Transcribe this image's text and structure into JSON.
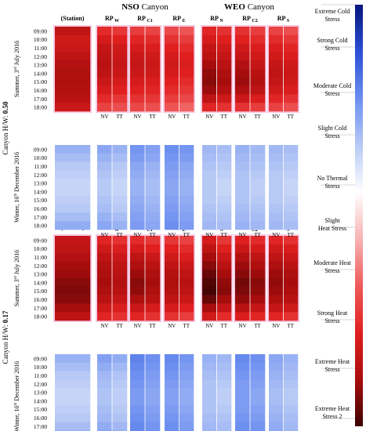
{
  "chart_data": {
    "type": "heatmap",
    "group_headers": {
      "nso": {
        "bold": "NSO",
        "rest": " Canyon"
      },
      "weo": {
        "bold": "WEO",
        "rest": " Canyon"
      }
    },
    "column_headers": [
      {
        "base": "(Station)",
        "sub": ""
      },
      {
        "base": "RP",
        "sub": "W"
      },
      {
        "base": "RP",
        "sub": "C1"
      },
      {
        "base": "RP",
        "sub": "E"
      },
      {
        "base": "RP",
        "sub": "N"
      },
      {
        "base": "RP",
        "sub": "C2"
      },
      {
        "base": "RP",
        "sub": "S"
      }
    ],
    "subcolumn_labels": [
      "NV",
      "TT"
    ],
    "times": [
      "09:00",
      "10:00",
      "11:00",
      "12:00",
      "13:00",
      "14:00",
      "15:00",
      "16:00",
      "17:00",
      "18:00"
    ],
    "canyons": [
      {
        "label_prefix": "Canyon H/W: ",
        "label_value": "0.50",
        "summer_label": {
          "pre": "Summer, 3",
          "sup": "rd",
          "post": " July 2016"
        },
        "winter_label": {
          "pre": "Winter, 16",
          "sup": "th",
          "post": " December 2016"
        }
      },
      {
        "label_prefix": "Canyon H/W: ",
        "label_value": "0.17",
        "summer_label": {
          "pre": "Summer, 3",
          "sup": "rd",
          "post": " July 2016"
        },
        "winter_label": {
          "pre": "Winter, 16",
          "sup": "th",
          "post": " December 2016"
        }
      }
    ],
    "colorbar_labels": [
      {
        "lines": [
          "Extreme Cold",
          "Stress"
        ],
        "v": 0
      },
      {
        "lines": [
          "Strong Cold",
          "Stress"
        ],
        "v": 1
      },
      {
        "lines": [
          "Moderate Cold",
          "Stress"
        ],
        "v": 2
      },
      {
        "lines": [
          "Slight Cold",
          "Stress"
        ],
        "v": 3
      },
      {
        "lines": [
          "No Thermal",
          "Stress"
        ],
        "v": 4
      },
      {
        "lines": [
          "Slight",
          "Heat Stress"
        ],
        "v": 5
      },
      {
        "lines": [
          "Moderate Heat",
          "Stress"
        ],
        "v": 6
      },
      {
        "lines": [
          "Strong Heat",
          "Stress"
        ],
        "v": 7
      },
      {
        "lines": [
          "Extreme Heat",
          "Stress"
        ],
        "v": 8
      },
      {
        "lines": [
          "Extreme Heat",
          "Stress 2"
        ],
        "v": 9
      }
    ],
    "colorbar_stops": [
      "#06157a",
      "#2b4fd6",
      "#6d8ff0",
      "#b7c9f5",
      "#ffffff",
      "#f7b3b3",
      "#ee5a5a",
      "#e01f1f",
      "#a80d0d",
      "#3c0303"
    ],
    "scale_min": 0,
    "scale_max": 9,
    "heat_values": {
      "p1_summer": [
        [
          [
            7.6
          ],
          [
            7.3
          ],
          [
            7.4
          ],
          [
            7.6
          ],
          [
            7.8
          ],
          [
            7.9
          ],
          [
            7.9
          ],
          [
            7.8
          ],
          [
            7.7
          ],
          [
            7.4
          ]
        ],
        [
          [
            6.8,
            6.6
          ],
          [
            7.2,
            7.0
          ],
          [
            7.5,
            7.3
          ],
          [
            7.6,
            7.4
          ],
          [
            7.7,
            7.5
          ],
          [
            7.6,
            7.4
          ],
          [
            7.4,
            7.2
          ],
          [
            7.2,
            7.0
          ],
          [
            6.8,
            6.6
          ],
          [
            6.4,
            6.2
          ]
        ],
        [
          [
            6.5,
            6.4
          ],
          [
            6.9,
            6.8
          ],
          [
            7.2,
            7.1
          ],
          [
            7.4,
            7.3
          ],
          [
            7.5,
            7.4
          ],
          [
            7.4,
            7.3
          ],
          [
            7.2,
            7.1
          ],
          [
            7.0,
            6.9
          ],
          [
            6.7,
            6.6
          ],
          [
            6.3,
            6.2
          ]
        ],
        [
          [
            6.3,
            6.1
          ],
          [
            6.7,
            6.5
          ],
          [
            7.0,
            6.8
          ],
          [
            7.2,
            7.0
          ],
          [
            7.3,
            7.1
          ],
          [
            7.2,
            7.0
          ],
          [
            7.0,
            6.8
          ],
          [
            6.8,
            6.6
          ],
          [
            6.5,
            6.3
          ],
          [
            6.1,
            5.9
          ]
        ],
        [
          [
            6.9,
            6.7
          ],
          [
            7.2,
            7.0
          ],
          [
            7.5,
            7.3
          ],
          [
            7.7,
            7.5
          ],
          [
            8.0,
            7.7
          ],
          [
            8.2,
            7.9
          ],
          [
            8.3,
            8.0
          ],
          [
            8.1,
            7.8
          ],
          [
            7.6,
            7.3
          ],
          [
            6.9,
            6.7
          ]
        ],
        [
          [
            6.7,
            6.5
          ],
          [
            7.0,
            6.8
          ],
          [
            7.3,
            7.1
          ],
          [
            7.5,
            7.3
          ],
          [
            7.8,
            7.5
          ],
          [
            8.0,
            7.7
          ],
          [
            8.1,
            7.8
          ],
          [
            7.9,
            7.6
          ],
          [
            7.4,
            7.1
          ],
          [
            6.7,
            6.5
          ]
        ],
        [
          [
            6.4,
            6.2
          ],
          [
            6.8,
            6.6
          ],
          [
            7.1,
            6.9
          ],
          [
            7.3,
            7.1
          ],
          [
            7.5,
            7.3
          ],
          [
            7.6,
            7.4
          ],
          [
            7.5,
            7.3
          ],
          [
            7.3,
            7.1
          ],
          [
            6.9,
            6.7
          ],
          [
            6.4,
            6.2
          ]
        ]
      ],
      "p1_winter": [
        [
          [
            2.6
          ],
          [
            2.8
          ],
          [
            3.0
          ],
          [
            3.1
          ],
          [
            3.2
          ],
          [
            3.2
          ],
          [
            3.1
          ],
          [
            3.0
          ],
          [
            2.8
          ],
          [
            2.5
          ]
        ],
        [
          [
            2.4,
            2.6
          ],
          [
            2.6,
            2.8
          ],
          [
            2.8,
            3.0
          ],
          [
            2.9,
            3.1
          ],
          [
            3.0,
            3.2
          ],
          [
            3.0,
            3.2
          ],
          [
            2.9,
            3.1
          ],
          [
            2.8,
            3.0
          ],
          [
            2.6,
            2.8
          ],
          [
            2.4,
            2.6
          ]
        ],
        [
          [
            2.1,
            2.3
          ],
          [
            2.2,
            2.4
          ],
          [
            2.4,
            2.6
          ],
          [
            2.5,
            2.7
          ],
          [
            2.6,
            2.8
          ],
          [
            2.6,
            2.8
          ],
          [
            2.5,
            2.7
          ],
          [
            2.4,
            2.6
          ],
          [
            2.3,
            2.5
          ],
          [
            2.2,
            2.4
          ]
        ],
        [
          [
            2.0,
            2.1
          ],
          [
            2.1,
            2.2
          ],
          [
            2.2,
            2.4
          ],
          [
            2.3,
            2.5
          ],
          [
            2.4,
            2.6
          ],
          [
            2.4,
            2.6
          ],
          [
            2.3,
            2.5
          ],
          [
            2.2,
            2.4
          ],
          [
            2.1,
            2.3
          ],
          [
            2.0,
            2.2
          ]
        ],
        [
          [
            2.7,
            2.8
          ],
          [
            2.8,
            2.9
          ],
          [
            2.9,
            3.0
          ],
          [
            3.0,
            3.1
          ],
          [
            3.0,
            3.2
          ],
          [
            3.0,
            3.2
          ],
          [
            3.0,
            3.1
          ],
          [
            2.9,
            3.0
          ],
          [
            2.8,
            2.9
          ],
          [
            2.7,
            2.8
          ]
        ],
        [
          [
            2.6,
            2.7
          ],
          [
            2.7,
            2.8
          ],
          [
            2.8,
            2.9
          ],
          [
            2.9,
            3.0
          ],
          [
            2.9,
            3.1
          ],
          [
            2.9,
            3.1
          ],
          [
            2.9,
            3.0
          ],
          [
            2.8,
            2.9
          ],
          [
            2.7,
            2.8
          ],
          [
            2.6,
            2.7
          ]
        ],
        [
          [
            2.7,
            2.8
          ],
          [
            2.8,
            2.9
          ],
          [
            2.9,
            3.0
          ],
          [
            3.0,
            3.1
          ],
          [
            3.0,
            3.2
          ],
          [
            3.0,
            3.2
          ],
          [
            3.0,
            3.1
          ],
          [
            2.9,
            3.0
          ],
          [
            2.8,
            2.9
          ],
          [
            2.7,
            2.8
          ]
        ]
      ],
      "p2_summer": [
        [
          [
            7.5
          ],
          [
            7.6
          ],
          [
            7.8
          ],
          [
            8.0
          ],
          [
            8.1
          ],
          [
            8.3
          ],
          [
            8.4
          ],
          [
            8.3
          ],
          [
            8.0
          ],
          [
            7.6
          ]
        ],
        [
          [
            6.9,
            6.7
          ],
          [
            7.3,
            7.1
          ],
          [
            7.6,
            7.4
          ],
          [
            7.8,
            7.6
          ],
          [
            7.9,
            7.7
          ],
          [
            8.0,
            7.8
          ],
          [
            7.9,
            7.7
          ],
          [
            7.7,
            7.5
          ],
          [
            7.3,
            7.1
          ],
          [
            6.9,
            6.7
          ]
        ],
        [
          [
            6.8,
            6.6
          ],
          [
            7.2,
            7.0
          ],
          [
            7.6,
            7.4
          ],
          [
            7.9,
            7.7
          ],
          [
            8.1,
            7.9
          ],
          [
            8.3,
            8.0
          ],
          [
            8.2,
            7.9
          ],
          [
            7.9,
            7.7
          ],
          [
            7.4,
            7.2
          ],
          [
            6.9,
            6.7
          ]
        ],
        [
          [
            6.6,
            6.4
          ],
          [
            7.0,
            6.8
          ],
          [
            7.3,
            7.1
          ],
          [
            7.6,
            7.4
          ],
          [
            7.8,
            7.6
          ],
          [
            7.9,
            7.7
          ],
          [
            7.8,
            7.6
          ],
          [
            7.6,
            7.4
          ],
          [
            7.2,
            7.0
          ],
          [
            6.7,
            6.5
          ]
        ],
        [
          [
            7.2,
            6.6
          ],
          [
            7.6,
            7.0
          ],
          [
            8.0,
            7.4
          ],
          [
            8.3,
            7.7
          ],
          [
            8.6,
            8.0
          ],
          [
            8.8,
            8.2
          ],
          [
            8.9,
            8.3
          ],
          [
            8.6,
            8.0
          ],
          [
            8.0,
            7.5
          ],
          [
            7.3,
            6.8
          ]
        ],
        [
          [
            7.0,
            6.8
          ],
          [
            7.4,
            7.2
          ],
          [
            7.8,
            7.6
          ],
          [
            8.1,
            7.9
          ],
          [
            8.3,
            8.1
          ],
          [
            8.5,
            8.3
          ],
          [
            8.4,
            8.2
          ],
          [
            8.2,
            8.0
          ],
          [
            7.7,
            7.5
          ],
          [
            7.1,
            6.9
          ]
        ],
        [
          [
            6.9,
            6.7
          ],
          [
            7.3,
            7.1
          ],
          [
            7.6,
            7.4
          ],
          [
            7.9,
            7.7
          ],
          [
            8.1,
            7.9
          ],
          [
            8.2,
            8.0
          ],
          [
            8.1,
            7.9
          ],
          [
            7.9,
            7.7
          ],
          [
            7.5,
            7.3
          ],
          [
            6.9,
            6.7
          ]
        ]
      ],
      "p2_winter": [
        [
          [
            2.6
          ],
          [
            2.8
          ],
          [
            3.0
          ],
          [
            3.1
          ],
          [
            3.2
          ],
          [
            3.2
          ],
          [
            3.1
          ],
          [
            3.0
          ],
          [
            2.8
          ],
          [
            2.5
          ]
        ],
        [
          [
            2.3,
            2.5
          ],
          [
            2.5,
            2.7
          ],
          [
            2.7,
            2.9
          ],
          [
            2.8,
            3.0
          ],
          [
            2.9,
            3.1
          ],
          [
            2.9,
            3.1
          ],
          [
            2.8,
            3.0
          ],
          [
            2.7,
            2.9
          ],
          [
            2.5,
            2.7
          ],
          [
            2.3,
            2.5
          ]
        ],
        [
          [
            1.8,
            2.0
          ],
          [
            1.9,
            2.1
          ],
          [
            2.0,
            2.2
          ],
          [
            2.1,
            2.3
          ],
          [
            2.2,
            2.4
          ],
          [
            2.2,
            2.4
          ],
          [
            2.1,
            2.3
          ],
          [
            2.0,
            2.2
          ],
          [
            1.9,
            2.1
          ],
          [
            1.8,
            2.0
          ]
        ],
        [
          [
            1.9,
            2.1
          ],
          [
            2.0,
            2.2
          ],
          [
            2.1,
            2.3
          ],
          [
            2.2,
            2.4
          ],
          [
            2.3,
            2.5
          ],
          [
            2.3,
            2.5
          ],
          [
            2.2,
            2.4
          ],
          [
            2.1,
            2.3
          ],
          [
            2.0,
            2.2
          ],
          [
            1.9,
            2.1
          ]
        ],
        [
          [
            2.6,
            2.7
          ],
          [
            2.7,
            2.8
          ],
          [
            2.8,
            2.9
          ],
          [
            2.9,
            3.0
          ],
          [
            2.9,
            3.1
          ],
          [
            2.9,
            3.1
          ],
          [
            2.9,
            3.0
          ],
          [
            2.8,
            2.9
          ],
          [
            2.7,
            2.8
          ],
          [
            2.6,
            2.7
          ]
        ],
        [
          [
            1.9,
            2.0
          ],
          [
            2.0,
            2.1
          ],
          [
            2.1,
            2.2
          ],
          [
            2.2,
            2.3
          ],
          [
            2.2,
            2.4
          ],
          [
            2.2,
            2.4
          ],
          [
            2.2,
            2.3
          ],
          [
            2.1,
            2.2
          ],
          [
            2.0,
            2.1
          ],
          [
            1.9,
            2.0
          ]
        ],
        [
          [
            2.4,
            2.6
          ],
          [
            2.5,
            2.7
          ],
          [
            2.6,
            2.8
          ],
          [
            2.7,
            2.9
          ],
          [
            2.8,
            3.0
          ],
          [
            2.8,
            3.0
          ],
          [
            2.7,
            2.9
          ],
          [
            2.6,
            2.8
          ],
          [
            2.5,
            2.7
          ],
          [
            2.4,
            2.6
          ]
        ]
      ]
    }
  }
}
